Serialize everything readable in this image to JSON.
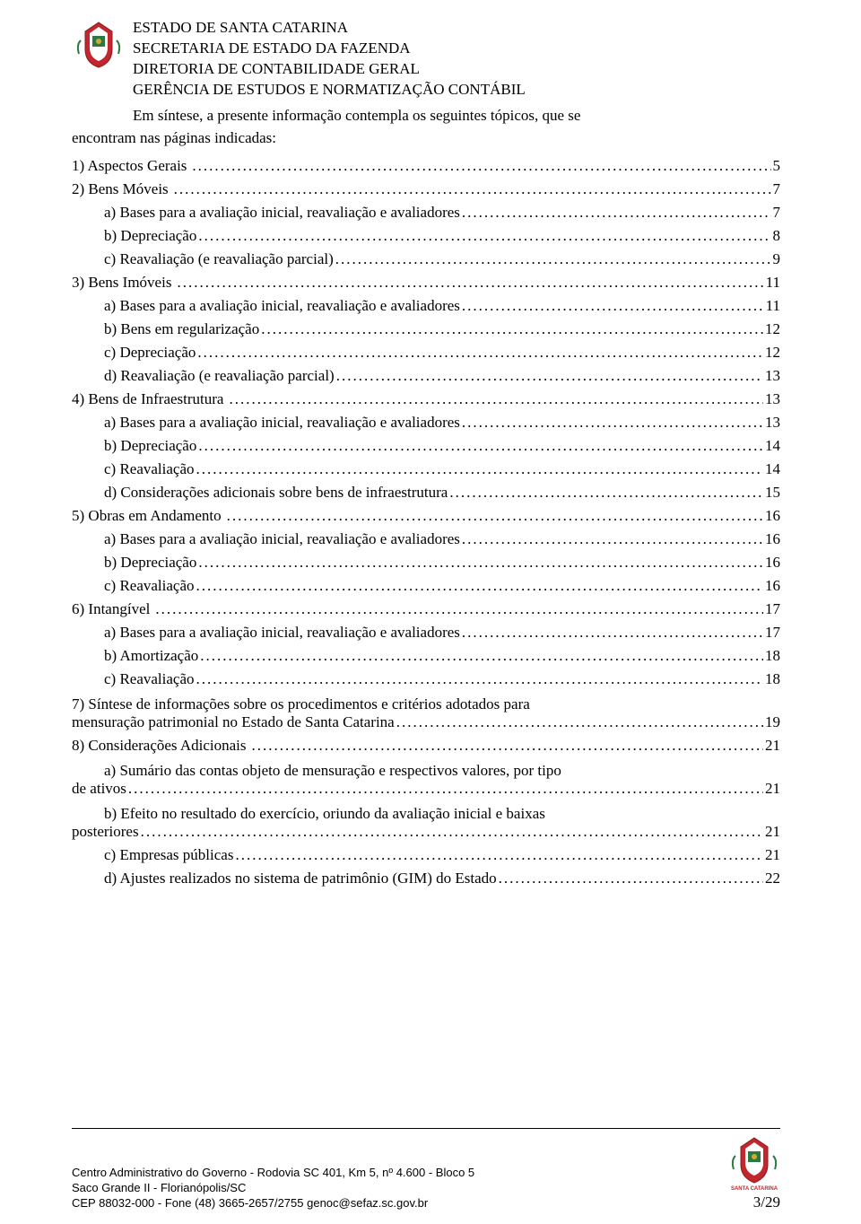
{
  "header": {
    "line1": "ESTADO DE SANTA CATARINA",
    "line2": "SECRETARIA DE ESTADO DA FAZENDA",
    "line3": "DIRETORIA DE CONTABILIDADE GERAL",
    "line4": "GERÊNCIA DE ESTUDOS E NORMATIZAÇÃO CONTÁBIL"
  },
  "intro": {
    "line1": "Em síntese, a presente informação contempla os seguintes tópicos, que se",
    "line2": "encontram nas páginas indicadas:"
  },
  "toc": [
    {
      "level": 1,
      "label": "1)    Aspectos Gerais",
      "page": "5"
    },
    {
      "level": 1,
      "label": "2)    Bens Móveis",
      "page": "7"
    },
    {
      "level": 2,
      "label": "a)    Bases para a avaliação inicial, reavaliação e avaliadores",
      "page": "7"
    },
    {
      "level": 2,
      "label": "b)    Depreciação",
      "page": "8"
    },
    {
      "level": 2,
      "label": "c)    Reavaliação (e reavaliação parcial)",
      "page": "9"
    },
    {
      "level": 1,
      "label": "3)    Bens Imóveis",
      "page": "11"
    },
    {
      "level": 2,
      "label": "a)    Bases para a avaliação inicial, reavaliação e avaliadores",
      "page": "11"
    },
    {
      "level": 2,
      "label": "b)    Bens em regularização",
      "page": "12"
    },
    {
      "level": 2,
      "label": "c)    Depreciação",
      "page": "12"
    },
    {
      "level": 2,
      "label": "d)    Reavaliação (e reavaliação parcial)",
      "page": "13"
    },
    {
      "level": 1,
      "label": "4)    Bens de Infraestrutura",
      "page": "13"
    },
    {
      "level": 2,
      "label": "a)    Bases para a avaliação inicial, reavaliação e avaliadores",
      "page": "13"
    },
    {
      "level": 2,
      "label": "b)    Depreciação",
      "page": "14"
    },
    {
      "level": 2,
      "label": "c)    Reavaliação",
      "page": "14"
    },
    {
      "level": 2,
      "label": "d)    Considerações adicionais sobre bens de infraestrutura",
      "page": "15"
    },
    {
      "level": 1,
      "label": "5)    Obras em Andamento",
      "page": "16"
    },
    {
      "level": 2,
      "label": "a)    Bases para a avaliação inicial, reavaliação e avaliadores",
      "page": "16"
    },
    {
      "level": 2,
      "label": "b)    Depreciação",
      "page": "16"
    },
    {
      "level": 2,
      "label": "c)    Reavaliação",
      "page": "16"
    },
    {
      "level": 1,
      "label": "6)    Intangível",
      "page": "17"
    },
    {
      "level": 2,
      "label": "a)    Bases para a avaliação inicial, reavaliação e avaliadores",
      "page": "17"
    },
    {
      "level": 2,
      "label": "b)    Amortização",
      "page": "18"
    },
    {
      "level": 2,
      "label": "c)    Reavaliação",
      "page": "18"
    }
  ],
  "toc_multi_7": {
    "line1": "7)    Síntese de informações sobre os procedimentos e critérios adotados para",
    "line2": "mensuração patrimonial no Estado de Santa Catarina",
    "page": "19"
  },
  "toc_8": {
    "label": "8)    Considerações Adicionais",
    "page": "21"
  },
  "toc_multi_8a": {
    "line1": "a)    Sumário das contas objeto de mensuração e respectivos valores, por tipo",
    "line2": "de ativos",
    "page": "21"
  },
  "toc_multi_8b": {
    "line1": "b)    Efeito no resultado do exercício, oriundo da avaliação inicial e baixas",
    "line2": "posteriores",
    "page": "21"
  },
  "toc_8c": {
    "label": "c)    Empresas públicas",
    "page": "21"
  },
  "toc_8d": {
    "label": "d)    Ajustes realizados no sistema de patrimônio (GIM) do Estado",
    "page": "22"
  },
  "footer": {
    "line1": "Centro Administrativo do Governo - Rodovia SC 401, Km 5, nº 4.600 - Bloco 5",
    "line2": "Saco Grande II - Florianópolis/SC",
    "line3": "CEP 88032-000 - Fone (48) 3665-2657/2755 genoc@sefaz.sc.gov.br",
    "brand": "SANTA CATARINA",
    "page": "3/29"
  },
  "colors": {
    "text": "#000000",
    "background": "#ffffff",
    "crest_red": "#c1272d",
    "crest_green": "#2a7a3f",
    "crest_gold": "#d4a838"
  }
}
